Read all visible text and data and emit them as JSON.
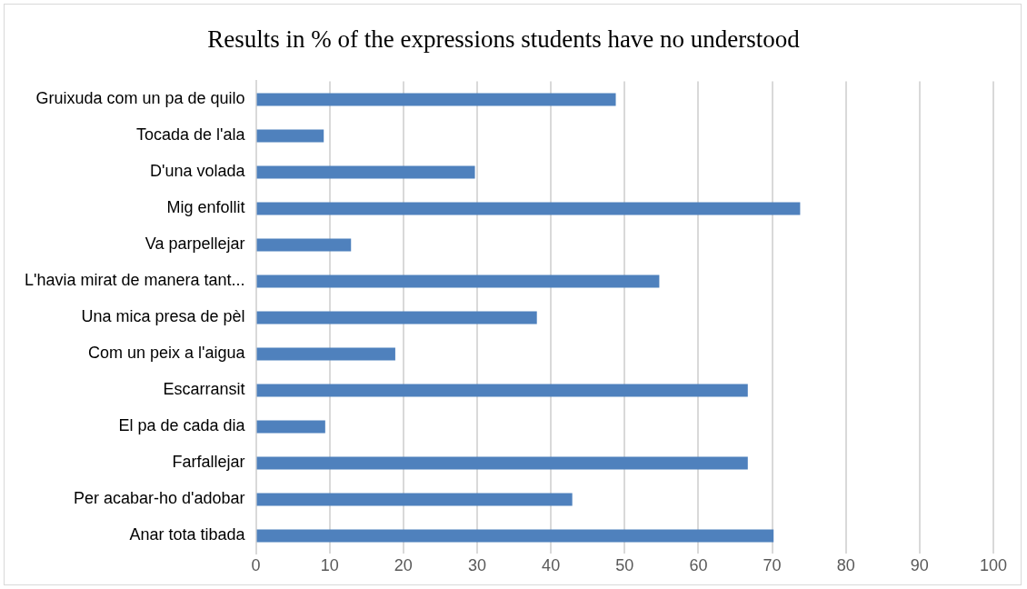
{
  "chart_data": {
    "type": "bar",
    "orientation": "horizontal",
    "title": "Results in % of the expressions students have no understood",
    "categories": [
      "Gruixuda com un pa de quilo",
      "Tocada de l'ala",
      "D'una volada",
      "Mig enfollit",
      "Va parpellejar",
      "L'havia mirat de manera tant...",
      "Una mica presa de pèl",
      "Com un peix a l'aigua",
      "Escarransit",
      "El pa de cada dia",
      "Farfallejar",
      "Per acabar-ho d'adobar",
      "Anar tota tibada"
    ],
    "values": [
      48.8,
      9.2,
      29.7,
      73.8,
      12.9,
      54.7,
      38.1,
      18.9,
      66.7,
      9.4,
      66.7,
      42.9,
      70.2
    ],
    "color": "#4f81bd",
    "xlim": [
      0,
      100
    ],
    "xticks": [
      0,
      10,
      20,
      30,
      40,
      50,
      60,
      70,
      80,
      90,
      100
    ],
    "grid": "x",
    "legend": false
  }
}
